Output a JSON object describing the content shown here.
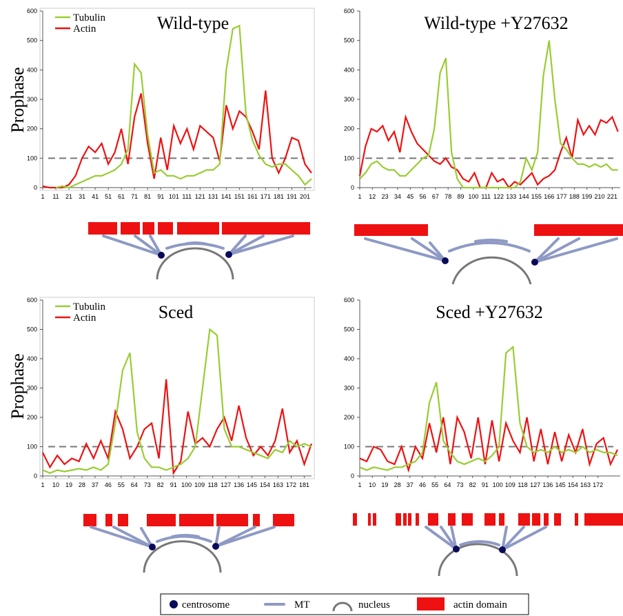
{
  "chart_data": [
    {
      "type": "line",
      "title": "Wild-type",
      "ylabel": "Prophase",
      "legend": true,
      "reference_line": 100,
      "x": [
        1,
        6,
        11,
        16,
        21,
        26,
        31,
        36,
        41,
        46,
        51,
        56,
        61,
        66,
        71,
        76,
        81,
        86,
        91,
        96,
        101,
        106,
        111,
        116,
        121,
        126,
        131,
        136,
        141,
        146,
        151,
        156,
        161,
        166,
        171,
        176,
        181,
        186,
        191,
        196,
        201,
        206
      ],
      "series": [
        {
          "name": "Tubulin",
          "color": "#99cc33",
          "values": [
            null,
            null,
            0,
            5,
            0,
            10,
            20,
            30,
            40,
            40,
            50,
            60,
            80,
            130,
            420,
            390,
            180,
            50,
            60,
            40,
            40,
            30,
            40,
            40,
            50,
            60,
            60,
            80,
            400,
            540,
            550,
            250,
            160,
            110,
            80,
            70,
            80,
            80,
            60,
            40,
            10,
            30
          ]
        },
        {
          "name": "Actin",
          "color": "#ee1111",
          "values": [
            5,
            0,
            0,
            0,
            10,
            40,
            100,
            140,
            120,
            150,
            80,
            120,
            200,
            80,
            240,
            320,
            150,
            30,
            170,
            60,
            210,
            150,
            200,
            130,
            210,
            190,
            170,
            90,
            280,
            200,
            260,
            240,
            190,
            130,
            330,
            100,
            50,
            100,
            170,
            160,
            80,
            50
          ]
        }
      ],
      "xlim": [
        1,
        206
      ],
      "xticks": [
        1,
        11,
        21,
        31,
        41,
        51,
        61,
        71,
        81,
        91,
        101,
        111,
        121,
        131,
        141,
        151,
        161,
        171,
        181,
        191,
        201
      ],
      "ylim": [
        0,
        600
      ],
      "yticks": [
        0,
        100,
        200,
        300,
        400,
        500,
        600
      ]
    },
    {
      "type": "line",
      "title": "Wild-type +Y27632",
      "legend": false,
      "reference_line": 100,
      "x": [
        1,
        6,
        11,
        16,
        21,
        26,
        31,
        36,
        41,
        46,
        51,
        56,
        61,
        66,
        71,
        76,
        81,
        86,
        91,
        96,
        101,
        106,
        111,
        116,
        121,
        126,
        131,
        136,
        141,
        146,
        151,
        156,
        161,
        166,
        171,
        176,
        181,
        186,
        191,
        196,
        201,
        206,
        211,
        216,
        221,
        226
      ],
      "series": [
        {
          "name": "Tubulin",
          "color": "#99cc33",
          "values": [
            30,
            50,
            80,
            90,
            70,
            60,
            60,
            40,
            40,
            60,
            80,
            100,
            110,
            200,
            390,
            440,
            120,
            30,
            0,
            0,
            0,
            0,
            0,
            0,
            0,
            0,
            0,
            0,
            20,
            100,
            60,
            120,
            380,
            500,
            300,
            150,
            130,
            100,
            80,
            80,
            70,
            80,
            70,
            80,
            60,
            60
          ]
        },
        {
          "name": "Actin",
          "color": "#ee1111",
          "values": [
            40,
            140,
            200,
            190,
            210,
            160,
            190,
            120,
            240,
            190,
            150,
            130,
            110,
            90,
            80,
            100,
            70,
            60,
            30,
            20,
            50,
            0,
            0,
            50,
            20,
            30,
            0,
            20,
            10,
            30,
            50,
            10,
            30,
            40,
            60,
            120,
            170,
            100,
            230,
            180,
            210,
            180,
            230,
            220,
            240,
            190
          ]
        }
      ],
      "xlim": [
        1,
        228
      ],
      "xticks": [
        1,
        12,
        23,
        34,
        45,
        56,
        67,
        78,
        89,
        100,
        111,
        122,
        133,
        144,
        155,
        166,
        177,
        188,
        199,
        210,
        221
      ],
      "ylim": [
        0,
        600
      ],
      "yticks": [
        0,
        100,
        200,
        300,
        400,
        500,
        600
      ]
    },
    {
      "type": "line",
      "title": "Sced",
      "ylabel": "Prophase",
      "legend": true,
      "reference_line": 100,
      "x": [
        1,
        6,
        11,
        16,
        21,
        26,
        31,
        36,
        41,
        46,
        51,
        56,
        61,
        66,
        71,
        76,
        81,
        86,
        91,
        96,
        101,
        106,
        111,
        116,
        121,
        126,
        131,
        136,
        141,
        146,
        151,
        156,
        161,
        166,
        171,
        176,
        181,
        186
      ],
      "series": [
        {
          "name": "Tubulin",
          "color": "#99cc33",
          "values": [
            20,
            10,
            20,
            15,
            20,
            25,
            20,
            30,
            20,
            40,
            180,
            360,
            420,
            150,
            60,
            30,
            30,
            20,
            30,
            40,
            60,
            100,
            300,
            500,
            480,
            160,
            100,
            100,
            90,
            80,
            70,
            60,
            90,
            80,
            120,
            100,
            110,
            100
          ]
        },
        {
          "name": "Actin",
          "color": "#ee1111",
          "values": [
            80,
            30,
            70,
            40,
            60,
            50,
            110,
            60,
            120,
            60,
            220,
            160,
            60,
            100,
            160,
            180,
            60,
            330,
            10,
            50,
            220,
            110,
            130,
            100,
            160,
            200,
            120,
            240,
            130,
            70,
            100,
            70,
            120,
            230,
            80,
            120,
            40,
            110
          ]
        }
      ],
      "xlim": [
        1,
        186
      ],
      "xticks": [
        1,
        10,
        19,
        28,
        37,
        46,
        55,
        64,
        73,
        82,
        91,
        100,
        109,
        118,
        127,
        136,
        145,
        154,
        163,
        172,
        181
      ],
      "ylim": [
        0,
        600
      ],
      "yticks": [
        0,
        100,
        200,
        300,
        400,
        500,
        600
      ]
    },
    {
      "type": "line",
      "title": "Sced +Y27632",
      "legend": false,
      "reference_line": 100,
      "x": [
        1,
        6,
        11,
        16,
        21,
        26,
        31,
        36,
        41,
        46,
        51,
        56,
        61,
        66,
        71,
        76,
        81,
        86,
        91,
        96,
        101,
        106,
        111,
        116,
        121,
        126,
        131,
        136,
        141,
        146,
        151,
        156,
        161,
        166,
        171,
        176,
        181,
        186
      ],
      "series": [
        {
          "name": "Tubulin",
          "color": "#99cc33",
          "values": [
            30,
            20,
            30,
            25,
            20,
            30,
            30,
            40,
            50,
            80,
            250,
            320,
            120,
            80,
            50,
            40,
            50,
            60,
            50,
            70,
            100,
            420,
            440,
            180,
            100,
            80,
            90,
            80,
            100,
            80,
            90,
            80,
            100,
            80,
            90,
            80,
            80,
            70
          ]
        },
        {
          "name": "Actin",
          "color": "#ee1111",
          "values": [
            60,
            50,
            100,
            90,
            50,
            40,
            100,
            20,
            100,
            60,
            180,
            80,
            200,
            40,
            200,
            150,
            60,
            200,
            40,
            190,
            50,
            180,
            120,
            80,
            200,
            50,
            160,
            40,
            150,
            50,
            140,
            80,
            160,
            40,
            110,
            130,
            40,
            90
          ]
        }
      ],
      "xlim": [
        1,
        188
      ],
      "xticks": [
        1,
        10,
        19,
        28,
        37,
        46,
        55,
        64,
        73,
        82,
        91,
        100,
        109,
        118,
        127,
        136,
        145,
        154,
        163,
        172
      ],
      "ylim": [
        0,
        600
      ],
      "yticks": [
        0,
        100,
        200,
        300,
        400,
        500,
        600
      ]
    }
  ],
  "legend": [
    "centrosome",
    "MT",
    "nucleus",
    "actin domain"
  ]
}
